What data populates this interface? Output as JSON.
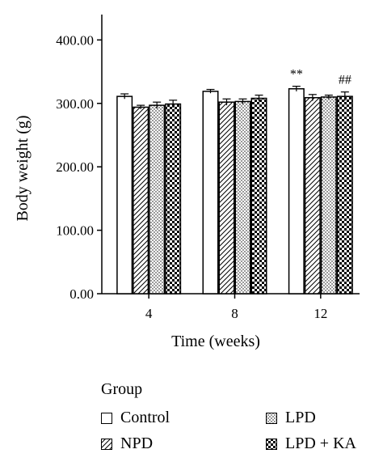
{
  "chart_data": {
    "type": "bar",
    "categories": [
      "4",
      "8",
      "12"
    ],
    "xlabel": "Time (weeks)",
    "ylabel": "Body weight (g)",
    "ylim": [
      0,
      440
    ],
    "yticks": [
      "0.00",
      "100.00",
      "200.00",
      "300.00",
      "400.00"
    ],
    "ytick_values": [
      0,
      100,
      200,
      300,
      400
    ],
    "grid": false,
    "legend_title": "Group",
    "legend_position": "bottom",
    "series": [
      {
        "name": "Control",
        "pattern": "white",
        "values": [
          311,
          319,
          323
        ],
        "errors": [
          4,
          3,
          4
        ]
      },
      {
        "name": "NPD",
        "pattern": "diagonal-hatch",
        "values": [
          294,
          302,
          309
        ],
        "errors": [
          3,
          5,
          5
        ]
      },
      {
        "name": "LPD",
        "pattern": "dots",
        "values": [
          297,
          303,
          310
        ],
        "errors": [
          5,
          4,
          3
        ]
      },
      {
        "name": "LPD + KA",
        "pattern": "checkerboard",
        "values": [
          299,
          308,
          311
        ],
        "errors": [
          6,
          5,
          7
        ]
      }
    ],
    "annotations": [
      {
        "text": "**",
        "category": "12",
        "series": "Control"
      },
      {
        "text": "##",
        "category": "12",
        "series": "LPD + KA"
      }
    ]
  }
}
